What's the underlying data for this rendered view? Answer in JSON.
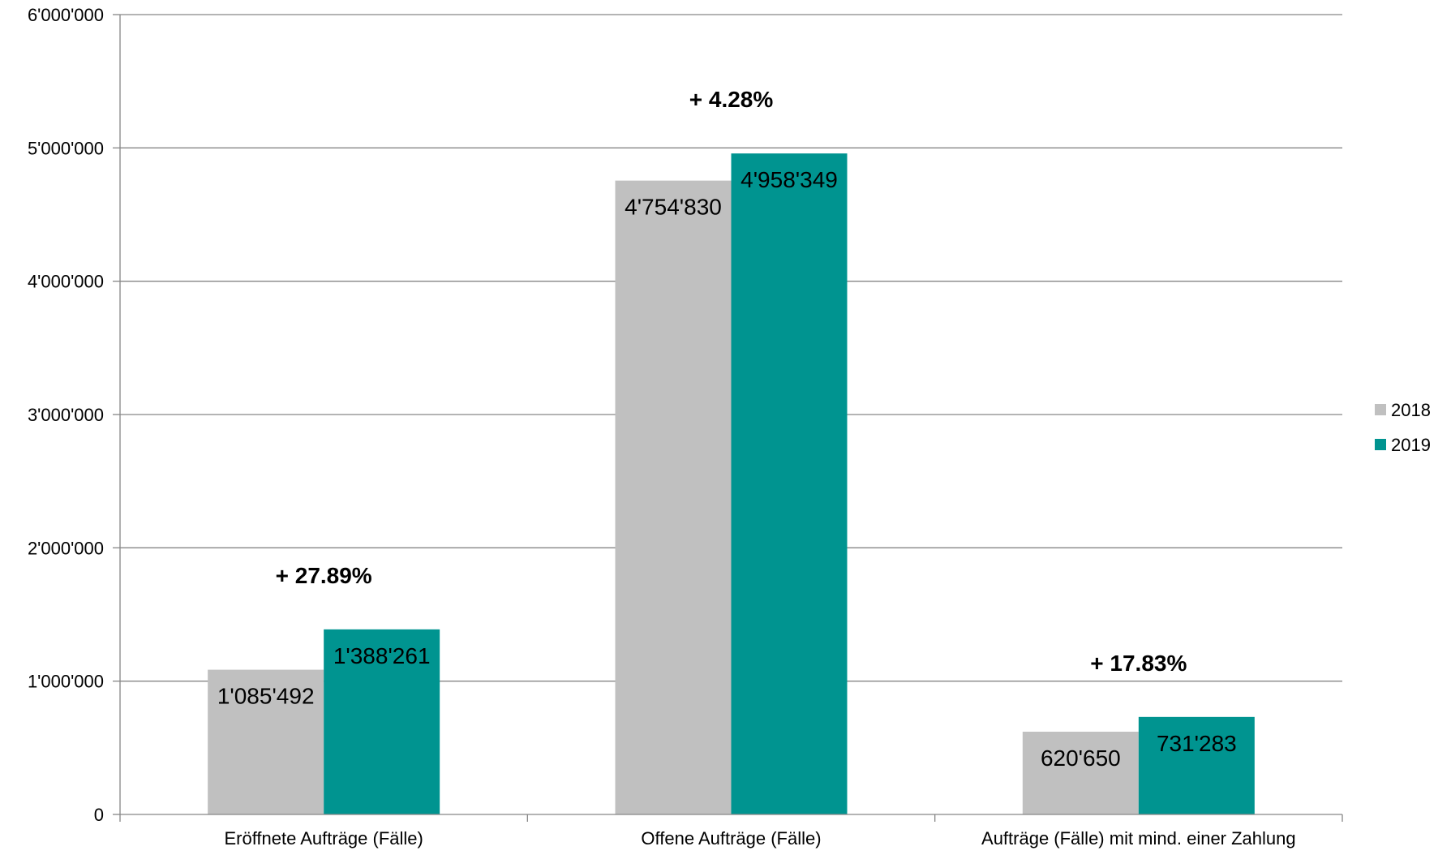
{
  "chart_data": {
    "type": "bar",
    "categories": [
      "Eröffnete Aufträge (Fälle)",
      "Offene Aufträge (Fälle)",
      "Aufträge (Fälle) mit mind. einer Zahlung"
    ],
    "series": [
      {
        "name": "2018",
        "color": "#c0c0c0",
        "values": [
          1085492,
          4754830,
          620650
        ],
        "labels": [
          "1'085'492",
          "4'754'830",
          "620'650"
        ]
      },
      {
        "name": "2019",
        "color": "#009490",
        "values": [
          1388261,
          4958349,
          731283
        ],
        "labels": [
          "1'388'261",
          "4'958'349",
          "731'283"
        ]
      }
    ],
    "annotations": [
      "+ 27.89%",
      "+ 4.28%",
      "+ 17.83%"
    ],
    "yticks": [
      0,
      1000000,
      2000000,
      3000000,
      4000000,
      5000000,
      6000000
    ],
    "ytick_labels": [
      "0",
      "1'000'000",
      "2'000'000",
      "3'000'000",
      "4'000'000",
      "5'000'000",
      "6'000'000"
    ],
    "ylim": [
      0,
      6000000
    ],
    "grid": true,
    "legend_position": "right",
    "title": "",
    "xlabel": "",
    "ylabel": ""
  }
}
